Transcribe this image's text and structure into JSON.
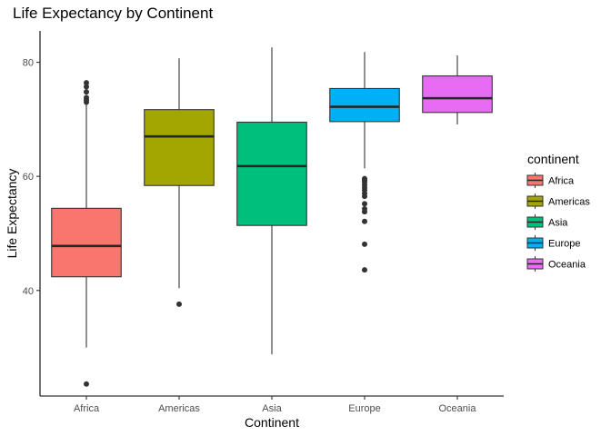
{
  "chart_data": {
    "type": "boxplot",
    "title": "Life Expectancy by Continent",
    "xlabel": "Continent",
    "ylabel": "Life Expectancy",
    "ylim": [
      21.5,
      85.5
    ],
    "yticks": [
      40,
      60,
      80
    ],
    "grid": false,
    "legend": {
      "title": "continent",
      "placement": "right"
    },
    "categories": [
      "Africa",
      "Americas",
      "Asia",
      "Europe",
      "Oceania"
    ],
    "series": [
      {
        "name": "Africa",
        "color": "#F8766D",
        "whisker_low": 30.0,
        "q1": 42.4,
        "median": 47.8,
        "q3": 54.4,
        "whisker_high": 72.8,
        "outliers": [
          23.6,
          73.0,
          73.4,
          73.8,
          74.8,
          75.7,
          76.4
        ]
      },
      {
        "name": "Americas",
        "color": "#A3A500",
        "whisker_low": 40.4,
        "q1": 58.4,
        "median": 67.0,
        "q3": 71.7,
        "whisker_high": 80.7,
        "outliers": [
          37.6
        ]
      },
      {
        "name": "Asia",
        "color": "#00BF7D",
        "whisker_low": 28.8,
        "q1": 51.4,
        "median": 61.8,
        "q3": 69.5,
        "whisker_high": 82.6,
        "outliers": []
      },
      {
        "name": "Europe",
        "color": "#00B0F6",
        "whisker_low": 61.4,
        "q1": 69.6,
        "median": 72.2,
        "q3": 75.4,
        "whisker_high": 81.8,
        "outliers": [
          43.6,
          48.1,
          52.1,
          53.8,
          54.3,
          55.2,
          56.5,
          57.0,
          57.6,
          58.0,
          58.5,
          59.0,
          59.3,
          59.6
        ]
      },
      {
        "name": "Oceania",
        "color": "#E76BF3",
        "whisker_low": 69.1,
        "q1": 71.2,
        "median": 73.7,
        "q3": 77.6,
        "whisker_high": 81.2,
        "outliers": []
      }
    ]
  }
}
